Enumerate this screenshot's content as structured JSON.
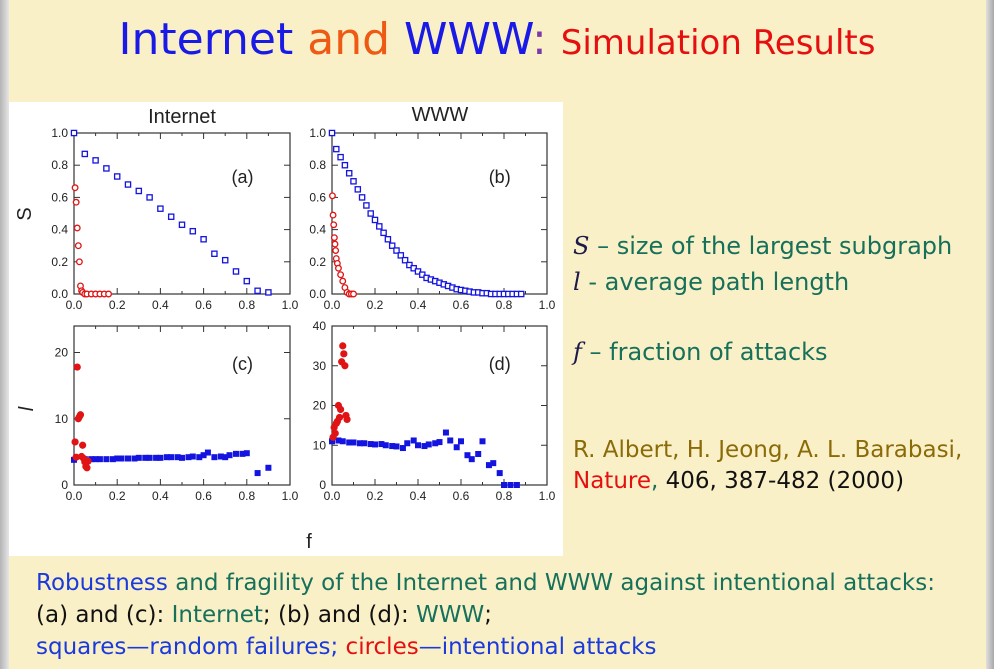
{
  "title": {
    "part1": "Internet",
    "part2": " and ",
    "part3": "WWW",
    "part4": ": ",
    "part5": "Simulation Results"
  },
  "legend": {
    "s_symbol": "S",
    "s_text": " – size of the largest subgraph",
    "l_symbol": "l",
    "l_text": " -  average path length",
    "f_symbol": "f",
    "f_text": " – fraction of attacks"
  },
  "reference": {
    "authors": "R. Albert, H. Jeong, A. L. Barabasi,",
    "journal": "Nature",
    "comma": ", ",
    "details": "406, 387-482 (2000)"
  },
  "caption": {
    "line1_a": "Robustness",
    "line1_b": " and fragility of the Internet and WWW against intentional attacks:",
    "line2_a": "(a) and (c): ",
    "line2_b": "Internet",
    "line2_c": "; (b) and (d): ",
    "line2_d": "WWW",
    "line2_e": ";",
    "line3_a": "squares—random failures; ",
    "line3_b": "circles",
    "line3_c": "—intentional attacks"
  },
  "colors": {
    "squares": "#1414e0",
    "circles": "#e01414"
  },
  "chart_data": [
    {
      "type": "scatter",
      "panel": "(a)",
      "title": "Internet",
      "ylabel": "S",
      "xlim": [
        0,
        1.0
      ],
      "ylim": [
        0,
        1.0
      ],
      "xticks": [
        "0.0",
        "0.2",
        "0.4",
        "0.6",
        "0.8",
        "1.0"
      ],
      "yticks": [
        "0.0",
        "0.2",
        "0.4",
        "0.6",
        "0.8",
        "1.0"
      ],
      "series": [
        {
          "marker": "open-square",
          "x": [
            0.0,
            0.05,
            0.1,
            0.15,
            0.2,
            0.25,
            0.3,
            0.35,
            0.4,
            0.45,
            0.5,
            0.55,
            0.6,
            0.65,
            0.7,
            0.75,
            0.8,
            0.85,
            0.9
          ],
          "y": [
            1.0,
            0.87,
            0.83,
            0.78,
            0.73,
            0.68,
            0.64,
            0.6,
            0.53,
            0.48,
            0.43,
            0.39,
            0.34,
            0.25,
            0.21,
            0.14,
            0.08,
            0.02,
            0.01
          ]
        },
        {
          "marker": "open-circle",
          "x": [
            0.005,
            0.01,
            0.015,
            0.02,
            0.025,
            0.03,
            0.035,
            0.04,
            0.05,
            0.06,
            0.08,
            0.1,
            0.12,
            0.14,
            0.16
          ],
          "y": [
            0.66,
            0.57,
            0.41,
            0.3,
            0.2,
            0.05,
            0.02,
            0.01,
            0.0,
            0.0,
            0.0,
            0.0,
            0.0,
            0.0,
            0.0
          ]
        }
      ]
    },
    {
      "type": "scatter",
      "panel": "(b)",
      "title": "WWW",
      "ylabel": "",
      "xlim": [
        0,
        1.0
      ],
      "ylim": [
        0,
        1.0
      ],
      "xticks": [
        "0.0",
        "0.2",
        "0.4",
        "0.6",
        "0.8",
        "1.0"
      ],
      "yticks": [
        "0.0",
        "0.2",
        "0.4",
        "0.6",
        "0.8",
        "1.0"
      ],
      "series": [
        {
          "marker": "open-square",
          "x": [
            0.0,
            0.02,
            0.04,
            0.06,
            0.08,
            0.1,
            0.12,
            0.14,
            0.16,
            0.18,
            0.2,
            0.22,
            0.24,
            0.26,
            0.28,
            0.3,
            0.32,
            0.34,
            0.36,
            0.38,
            0.4,
            0.42,
            0.44,
            0.46,
            0.48,
            0.5,
            0.52,
            0.54,
            0.56,
            0.58,
            0.6,
            0.62,
            0.64,
            0.66,
            0.68,
            0.7,
            0.72,
            0.74,
            0.76,
            0.78,
            0.8,
            0.82,
            0.84,
            0.86,
            0.88
          ],
          "y": [
            1.0,
            0.9,
            0.85,
            0.8,
            0.75,
            0.7,
            0.65,
            0.6,
            0.55,
            0.5,
            0.46,
            0.42,
            0.38,
            0.34,
            0.3,
            0.27,
            0.24,
            0.21,
            0.18,
            0.16,
            0.14,
            0.12,
            0.1,
            0.09,
            0.08,
            0.07,
            0.06,
            0.05,
            0.04,
            0.03,
            0.025,
            0.02,
            0.015,
            0.01,
            0.01,
            0.005,
            0.005,
            0.0,
            0.0,
            0.0,
            0.0,
            0.0,
            0.0,
            0.0,
            0.0
          ]
        },
        {
          "marker": "open-circle",
          "x": [
            0.002,
            0.005,
            0.008,
            0.011,
            0.014,
            0.017,
            0.02,
            0.025,
            0.03,
            0.04,
            0.05,
            0.06,
            0.07,
            0.08,
            0.09,
            0.1
          ],
          "y": [
            0.61,
            0.49,
            0.43,
            0.35,
            0.31,
            0.27,
            0.22,
            0.19,
            0.16,
            0.12,
            0.08,
            0.04,
            0.01,
            0.0,
            0.0,
            0.0
          ]
        }
      ]
    },
    {
      "type": "scatter",
      "panel": "(c)",
      "title": "",
      "ylabel": "l",
      "xlim": [
        0,
        1.0
      ],
      "ylim": [
        0,
        24
      ],
      "xticks": [
        "0.0",
        "0.2",
        "0.4",
        "0.6",
        "0.8",
        "1.0"
      ],
      "yticks": [
        "0",
        "10",
        "20"
      ],
      "series": [
        {
          "marker": "filled-square",
          "x": [
            0.0,
            0.05,
            0.08,
            0.1,
            0.12,
            0.15,
            0.18,
            0.2,
            0.22,
            0.25,
            0.28,
            0.3,
            0.33,
            0.35,
            0.38,
            0.4,
            0.43,
            0.45,
            0.48,
            0.5,
            0.53,
            0.55,
            0.58,
            0.6,
            0.62,
            0.65,
            0.68,
            0.7,
            0.72,
            0.75,
            0.78,
            0.8,
            0.85,
            0.9
          ],
          "y": [
            3.8,
            3.9,
            3.9,
            3.9,
            3.9,
            3.9,
            3.9,
            4.0,
            4.0,
            4.0,
            4.0,
            4.1,
            4.1,
            4.1,
            4.1,
            4.1,
            4.2,
            4.2,
            4.2,
            4.1,
            4.2,
            4.3,
            4.2,
            4.5,
            4.9,
            4.2,
            4.3,
            4.2,
            4.5,
            4.7,
            4.7,
            4.8,
            1.8,
            2.6
          ]
        },
        {
          "marker": "filled-circle",
          "x": [
            0.005,
            0.01,
            0.015,
            0.02,
            0.025,
            0.03,
            0.035,
            0.04,
            0.045,
            0.05,
            0.055,
            0.06,
            0.065
          ],
          "y": [
            6.5,
            4.2,
            17.8,
            10.0,
            10.3,
            10.6,
            4.3,
            6.0,
            4.0,
            3.5,
            2.8,
            2.6,
            3.6
          ]
        }
      ]
    },
    {
      "type": "scatter",
      "panel": "(d)",
      "title": "",
      "ylabel": "",
      "xlim": [
        0,
        1.0
      ],
      "ylim": [
        0,
        40
      ],
      "xticks": [
        "0.0",
        "0.2",
        "0.4",
        "0.6",
        "0.8",
        "1.0"
      ],
      "yticks": [
        "0",
        "10",
        "20",
        "30",
        "40"
      ],
      "series": [
        {
          "marker": "filled-square",
          "x": [
            0.0,
            0.03,
            0.05,
            0.08,
            0.1,
            0.13,
            0.15,
            0.18,
            0.2,
            0.23,
            0.25,
            0.28,
            0.3,
            0.33,
            0.35,
            0.38,
            0.4,
            0.43,
            0.45,
            0.48,
            0.5,
            0.53,
            0.55,
            0.58,
            0.6,
            0.63,
            0.65,
            0.68,
            0.7,
            0.73,
            0.75,
            0.78,
            0.8,
            0.83,
            0.86
          ],
          "y": [
            11.0,
            11.2,
            11.0,
            10.7,
            10.7,
            10.5,
            10.5,
            10.3,
            10.2,
            10.3,
            10.0,
            9.8,
            9.7,
            9.3,
            10.5,
            11.2,
            10.0,
            9.8,
            10.2,
            10.5,
            10.8,
            13.2,
            11.2,
            9.5,
            11.0,
            7.5,
            6.5,
            7.8,
            11.0,
            5.0,
            5.5,
            3.0,
            0.0,
            0.0,
            0.0
          ]
        },
        {
          "marker": "filled-circle",
          "x": [
            0.005,
            0.01,
            0.015,
            0.02,
            0.025,
            0.03,
            0.035,
            0.04,
            0.045,
            0.05,
            0.055,
            0.06,
            0.065,
            0.07
          ],
          "y": [
            12.0,
            14.5,
            13.0,
            15.5,
            16.0,
            20.0,
            17.0,
            19.0,
            31.0,
            35.0,
            33.0,
            30.0,
            17.5,
            16.5
          ]
        }
      ]
    }
  ],
  "axis_text": {
    "title_internet": "Internet",
    "title_www": "WWW",
    "ylabel_s": "S",
    "ylabel_l": "l",
    "xlabel_f": "f"
  }
}
